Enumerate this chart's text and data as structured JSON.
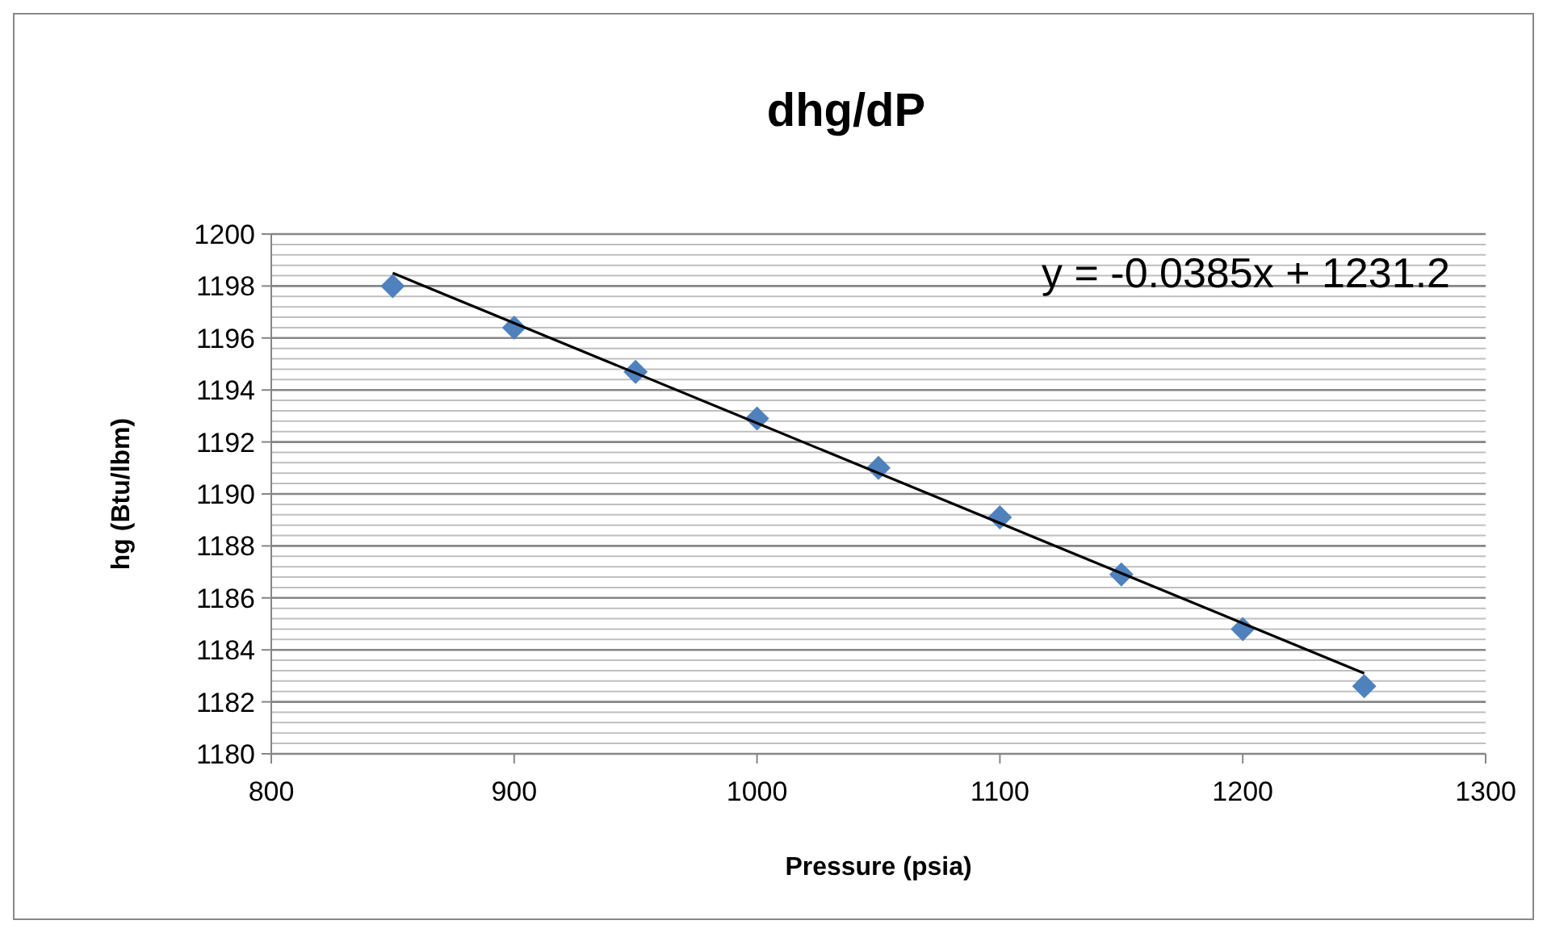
{
  "chart_data": {
    "type": "scatter",
    "title": "dhg/dP",
    "xlabel": "Pressure (psia)",
    "ylabel": "hg (Btu/lbm)",
    "x": [
      850,
      900,
      950,
      1000,
      1050,
      1100,
      1150,
      1200,
      1250
    ],
    "series": [
      {
        "color": "#4f81bd",
        "marker": "diamond",
        "values": [
          1198.0,
          1196.4,
          1194.7,
          1192.9,
          1191.0,
          1189.1,
          1186.9,
          1184.8,
          1182.6
        ]
      },
      {
        "type": "line",
        "color": "#000000",
        "marker": "none",
        "x": [
          850,
          1250
        ],
        "values": [
          1198.5,
          1183.1
        ]
      }
    ],
    "annotations": [
      "y = -0.0385x + 1231.2"
    ],
    "xlim": [
      800,
      1300
    ],
    "xticks": [
      800,
      900,
      1000,
      1100,
      1200,
      1300
    ],
    "ylim": [
      1180,
      1200
    ],
    "yticks": [
      1180,
      {
        "value": 1180.4,
        "label": null
      },
      {
        "value": 1180.8,
        "label": null
      },
      {
        "value": 1181.2,
        "label": null
      },
      {
        "value": 1181.6,
        "label": null
      },
      1182,
      {
        "value": 1182.4,
        "label": null
      },
      {
        "value": 1182.8,
        "label": null
      },
      {
        "value": 1183.2,
        "label": null
      },
      {
        "value": 1183.6,
        "label": null
      },
      1184,
      {
        "value": 1184.4,
        "label": null
      },
      {
        "value": 1184.8,
        "label": null
      },
      {
        "value": 1185.2,
        "label": null
      },
      {
        "value": 1185.6,
        "label": null
      },
      1186,
      {
        "value": 1186.4,
        "label": null
      },
      {
        "value": 1186.8,
        "label": null
      },
      {
        "value": 1187.2,
        "label": null
      },
      {
        "value": 1187.6,
        "label": null
      },
      1188,
      {
        "value": 1188.4,
        "label": null
      },
      {
        "value": 1188.8,
        "label": null
      },
      {
        "value": 1189.2,
        "label": null
      },
      {
        "value": 1189.6,
        "label": null
      },
      1190,
      {
        "value": 1190.4,
        "label": null
      },
      {
        "value": 1190.8,
        "label": null
      },
      {
        "value": 1191.2,
        "label": null
      },
      {
        "value": 1191.6,
        "label": null
      },
      1192,
      {
        "value": 1192.4,
        "label": null
      },
      {
        "value": 1192.8,
        "label": null
      },
      {
        "value": 1193.2,
        "label": null
      },
      {
        "value": 1193.6,
        "label": null
      },
      1194,
      {
        "value": 1194.4,
        "label": null
      },
      {
        "value": 1194.8,
        "label": null
      },
      {
        "value": 1195.2,
        "label": null
      },
      {
        "value": 1195.6,
        "label": null
      },
      1196,
      {
        "value": 1196.4,
        "label": null
      },
      {
        "value": 1196.8,
        "label": null
      },
      {
        "value": 1197.2,
        "label": null
      },
      {
        "value": 1197.6,
        "label": null
      },
      1198,
      {
        "value": 1198.4,
        "label": null
      },
      {
        "value": 1198.8,
        "label": null
      },
      {
        "value": 1199.2,
        "label": null
      },
      {
        "value": 1199.6,
        "label": null
      },
      1200
    ],
    "grid": "y"
  }
}
